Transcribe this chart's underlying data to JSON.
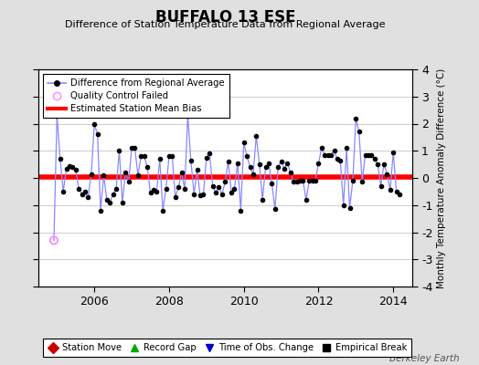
{
  "title": "BUFFALO 13 ESE",
  "subtitle": "Difference of Station Temperature Data from Regional Average",
  "ylabel": "Monthly Temperature Anomaly Difference (°C)",
  "xlabel_years": [
    2006,
    2008,
    2010,
    2012,
    2014
  ],
  "ylim": [
    -4,
    4
  ],
  "xlim_start": 2004.5,
  "xlim_end": 2014.5,
  "bias_value": 0.05,
  "background_color": "#e0e0e0",
  "plot_bg_color": "#ffffff",
  "line_color": "#8888ff",
  "dot_color": "#000000",
  "bias_color": "#ff0000",
  "qc_failed_x": 2004.917,
  "qc_failed_y": -2.3,
  "watermark": "Berkeley Earth",
  "monthly_data": [
    2004.917,
    -2.3,
    2005.0,
    2.3,
    2005.083,
    0.7,
    2005.167,
    -0.5,
    2005.25,
    0.35,
    2005.333,
    0.45,
    2005.417,
    0.4,
    2005.5,
    0.3,
    2005.583,
    -0.4,
    2005.667,
    -0.6,
    2005.75,
    -0.5,
    2005.833,
    -0.7,
    2005.917,
    0.15,
    2006.0,
    2.0,
    2006.083,
    1.6,
    2006.167,
    -1.2,
    2006.25,
    0.1,
    2006.333,
    -0.8,
    2006.417,
    -0.9,
    2006.5,
    -0.6,
    2006.583,
    -0.4,
    2006.667,
    1.0,
    2006.75,
    -0.9,
    2006.833,
    0.2,
    2006.917,
    -0.15,
    2007.0,
    1.1,
    2007.083,
    1.1,
    2007.167,
    0.1,
    2007.25,
    0.8,
    2007.333,
    0.8,
    2007.417,
    0.4,
    2007.5,
    -0.55,
    2007.583,
    -0.45,
    2007.667,
    -0.5,
    2007.75,
    0.7,
    2007.833,
    -1.2,
    2007.917,
    -0.4,
    2008.0,
    0.8,
    2008.083,
    0.8,
    2008.167,
    -0.7,
    2008.25,
    -0.35,
    2008.333,
    0.2,
    2008.417,
    -0.4,
    2008.5,
    2.3,
    2008.583,
    0.65,
    2008.667,
    -0.6,
    2008.75,
    0.3,
    2008.833,
    -0.65,
    2008.917,
    -0.6,
    2009.0,
    0.75,
    2009.083,
    0.9,
    2009.167,
    -0.3,
    2009.25,
    -0.55,
    2009.333,
    -0.35,
    2009.417,
    -0.6,
    2009.5,
    -0.15,
    2009.583,
    0.6,
    2009.667,
    -0.55,
    2009.75,
    -0.4,
    2009.833,
    0.55,
    2009.917,
    -1.2,
    2010.0,
    1.3,
    2010.083,
    0.8,
    2010.167,
    0.4,
    2010.25,
    0.15,
    2010.333,
    1.55,
    2010.417,
    0.5,
    2010.5,
    -0.8,
    2010.583,
    0.4,
    2010.667,
    0.55,
    2010.75,
    -0.2,
    2010.833,
    -1.15,
    2010.917,
    0.4,
    2011.0,
    0.6,
    2011.083,
    0.35,
    2011.167,
    0.55,
    2011.25,
    0.2,
    2011.333,
    -0.15,
    2011.417,
    -0.15,
    2011.5,
    -0.1,
    2011.583,
    -0.1,
    2011.667,
    -0.8,
    2011.75,
    -0.1,
    2011.833,
    -0.1,
    2011.917,
    -0.1,
    2012.0,
    0.55,
    2012.083,
    1.1,
    2012.167,
    0.85,
    2012.25,
    0.85,
    2012.333,
    0.85,
    2012.417,
    1.0,
    2012.5,
    0.7,
    2012.583,
    0.65,
    2012.667,
    -1.0,
    2012.75,
    1.1,
    2012.833,
    -1.1,
    2012.917,
    -0.1,
    2013.0,
    2.2,
    2013.083,
    1.7,
    2013.167,
    -0.15,
    2013.25,
    0.85,
    2013.333,
    0.85,
    2013.417,
    0.85,
    2013.5,
    0.7,
    2013.583,
    0.5,
    2013.667,
    -0.3,
    2013.75,
    0.5,
    2013.833,
    0.15,
    2013.917,
    -0.45,
    2014.0,
    0.95,
    2014.083,
    -0.5,
    2014.167,
    -0.6
  ]
}
